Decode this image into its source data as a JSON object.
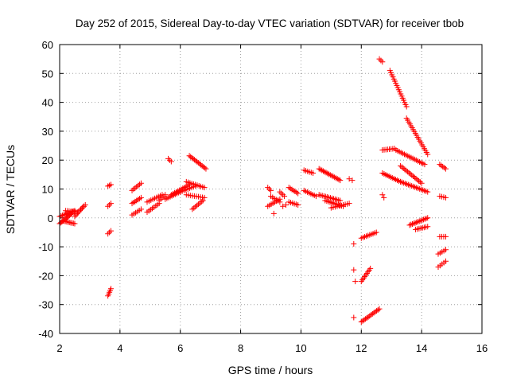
{
  "chart_data": {
    "type": "scatter",
    "title": "Day 252 of 2015, Sidereal Day-to-day VTEC variation (SDTVAR) for receiver tbob",
    "xlabel": "GPS time / hours",
    "ylabel": "SDTVAR / TECUs",
    "xlim": [
      2,
      16
    ],
    "ylim": [
      -40,
      60
    ],
    "xticks": [
      2,
      4,
      6,
      8,
      10,
      12,
      14,
      16
    ],
    "yticks": [
      -40,
      -30,
      -20,
      -10,
      0,
      10,
      20,
      30,
      40,
      50,
      60
    ],
    "grid": true,
    "marker": "+",
    "color": "#ff0000",
    "series": [
      {
        "name": "SDTVAR",
        "segments": [
          {
            "x0": 2.0,
            "y0": -2.0,
            "x1": 2.4,
            "y1": 1.5,
            "n": 12
          },
          {
            "x0": 2.0,
            "y0": 0.5,
            "x1": 2.5,
            "y1": 2.5,
            "n": 12
          },
          {
            "x0": 2.1,
            "y0": -1.0,
            "x1": 2.5,
            "y1": -2.0,
            "n": 10
          },
          {
            "x0": 2.2,
            "y0": 2.5,
            "x1": 2.6,
            "y1": 2.0,
            "n": 8
          },
          {
            "x0": 2.5,
            "y0": 0.5,
            "x1": 2.8,
            "y1": 4.0,
            "n": 8
          },
          {
            "x0": 2.7,
            "y0": 3.0,
            "x1": 2.85,
            "y1": 4.5,
            "n": 4
          },
          {
            "x0": 3.6,
            "y0": 11.0,
            "x1": 3.7,
            "y1": 11.5,
            "n": 3
          },
          {
            "x0": 3.6,
            "y0": 4.0,
            "x1": 3.7,
            "y1": 5.0,
            "n": 3
          },
          {
            "x0": 3.6,
            "y0": -5.5,
            "x1": 3.7,
            "y1": -4.5,
            "n": 3
          },
          {
            "x0": 3.6,
            "y0": -27.0,
            "x1": 3.7,
            "y1": -24.5,
            "n": 5
          },
          {
            "x0": 4.4,
            "y0": 9.5,
            "x1": 4.7,
            "y1": 12.0,
            "n": 7
          },
          {
            "x0": 4.4,
            "y0": 5.0,
            "x1": 4.7,
            "y1": 7.0,
            "n": 7
          },
          {
            "x0": 4.4,
            "y0": 1.0,
            "x1": 4.7,
            "y1": 3.0,
            "n": 6
          },
          {
            "x0": 4.9,
            "y0": 5.5,
            "x1": 5.4,
            "y1": 8.0,
            "n": 9
          },
          {
            "x0": 4.9,
            "y0": 2.0,
            "x1": 5.3,
            "y1": 5.0,
            "n": 8
          },
          {
            "x0": 5.3,
            "y0": 6.0,
            "x1": 5.5,
            "y1": 8.0,
            "n": 5
          },
          {
            "x0": 5.6,
            "y0": 20.5,
            "x1": 5.7,
            "y1": 19.5,
            "n": 3
          },
          {
            "x0": 5.5,
            "y0": 6.5,
            "x1": 6.0,
            "y1": 9.0,
            "n": 10
          },
          {
            "x0": 5.7,
            "y0": 8.0,
            "x1": 6.3,
            "y1": 11.5,
            "n": 12
          },
          {
            "x0": 6.0,
            "y0": 9.0,
            "x1": 6.5,
            "y1": 11.0,
            "n": 9
          },
          {
            "x0": 6.2,
            "y0": 12.5,
            "x1": 6.8,
            "y1": 10.5,
            "n": 11
          },
          {
            "x0": 6.3,
            "y0": 21.5,
            "x1": 6.85,
            "y1": 17.0,
            "n": 14
          },
          {
            "x0": 6.4,
            "y0": 3.0,
            "x1": 6.75,
            "y1": 6.0,
            "n": 8
          },
          {
            "x0": 6.2,
            "y0": 8.0,
            "x1": 6.8,
            "y1": 7.0,
            "n": 10
          },
          {
            "x0": 8.9,
            "y0": 10.5,
            "x1": 9.0,
            "y1": 9.5,
            "n": 3
          },
          {
            "x0": 8.9,
            "y0": 4.0,
            "x1": 9.3,
            "y1": 6.5,
            "n": 8
          },
          {
            "x0": 9.0,
            "y0": 7.5,
            "x1": 9.3,
            "y1": 5.5,
            "n": 6
          },
          {
            "x0": 9.3,
            "y0": 9.0,
            "x1": 9.45,
            "y1": 7.5,
            "n": 4
          },
          {
            "x0": 9.4,
            "y0": 4.0,
            "x1": 9.5,
            "y1": 4.5,
            "n": 2
          },
          {
            "x0": 9.6,
            "y0": 10.5,
            "x1": 9.9,
            "y1": 8.5,
            "n": 7
          },
          {
            "x0": 9.6,
            "y0": 5.5,
            "x1": 9.9,
            "y1": 4.5,
            "n": 6
          },
          {
            "x0": 10.1,
            "y0": 16.5,
            "x1": 10.4,
            "y1": 15.5,
            "n": 6
          },
          {
            "x0": 10.1,
            "y0": 9.5,
            "x1": 10.5,
            "y1": 7.5,
            "n": 8
          },
          {
            "x0": 10.6,
            "y0": 17.0,
            "x1": 11.3,
            "y1": 13.0,
            "n": 16
          },
          {
            "x0": 10.6,
            "y0": 8.0,
            "x1": 11.3,
            "y1": 6.0,
            "n": 14
          },
          {
            "x0": 10.8,
            "y0": 6.0,
            "x1": 11.4,
            "y1": 4.0,
            "n": 12
          },
          {
            "x0": 11.0,
            "y0": 3.5,
            "x1": 11.6,
            "y1": 5.0,
            "n": 10
          },
          {
            "x0": 9.1,
            "y0": 1.5,
            "x1": 9.15,
            "y1": 1.5,
            "n": 1
          },
          {
            "x0": 11.6,
            "y0": 13.5,
            "x1": 11.7,
            "y1": 13.0,
            "n": 2
          },
          {
            "x0": 11.75,
            "y0": -9.0,
            "x1": 11.8,
            "y1": -9.0,
            "n": 1
          },
          {
            "x0": 11.75,
            "y0": -18.0,
            "x1": 11.8,
            "y1": -22.0,
            "n": 2
          },
          {
            "x0": 11.75,
            "y0": -34.5,
            "x1": 11.8,
            "y1": -34.5,
            "n": 1
          },
          {
            "x0": 12.0,
            "y0": -36.0,
            "x1": 12.6,
            "y1": -31.5,
            "n": 14
          },
          {
            "x0": 12.0,
            "y0": -22.0,
            "x1": 12.3,
            "y1": -17.5,
            "n": 9
          },
          {
            "x0": 12.0,
            "y0": -7.0,
            "x1": 12.5,
            "y1": -5.0,
            "n": 10
          },
          {
            "x0": 12.6,
            "y0": 55.0,
            "x1": 12.7,
            "y1": 54.0,
            "n": 3
          },
          {
            "x0": 12.7,
            "y0": 23.5,
            "x1": 13.1,
            "y1": 24.0,
            "n": 8
          },
          {
            "x0": 12.7,
            "y0": 15.5,
            "x1": 13.3,
            "y1": 12.5,
            "n": 12
          },
          {
            "x0": 12.7,
            "y0": 8.0,
            "x1": 12.75,
            "y1": 7.0,
            "n": 2
          },
          {
            "x0": 12.95,
            "y0": 51.0,
            "x1": 13.5,
            "y1": 38.5,
            "n": 18
          },
          {
            "x0": 13.3,
            "y0": 12.5,
            "x1": 14.2,
            "y1": 9.0,
            "n": 18
          },
          {
            "x0": 13.15,
            "y0": 23.5,
            "x1": 14.1,
            "y1": 18.5,
            "n": 18
          },
          {
            "x0": 13.3,
            "y0": 18.0,
            "x1": 14.0,
            "y1": 12.0,
            "n": 16
          },
          {
            "x0": 13.5,
            "y0": 34.5,
            "x1": 14.2,
            "y1": 22.0,
            "n": 20
          },
          {
            "x0": 13.6,
            "y0": -2.5,
            "x1": 14.2,
            "y1": 0.0,
            "n": 14
          },
          {
            "x0": 13.8,
            "y0": -4.0,
            "x1": 14.2,
            "y1": -3.0,
            "n": 8
          },
          {
            "x0": 14.6,
            "y0": 18.5,
            "x1": 14.8,
            "y1": 17.0,
            "n": 5
          },
          {
            "x0": 14.6,
            "y0": 7.5,
            "x1": 14.8,
            "y1": 7.0,
            "n": 4
          },
          {
            "x0": 14.6,
            "y0": -6.5,
            "x1": 14.8,
            "y1": -6.5,
            "n": 4
          },
          {
            "x0": 14.55,
            "y0": -12.5,
            "x1": 14.8,
            "y1": -11.0,
            "n": 5
          },
          {
            "x0": 14.55,
            "y0": -17.0,
            "x1": 14.8,
            "y1": -15.0,
            "n": 5
          }
        ]
      }
    ]
  }
}
